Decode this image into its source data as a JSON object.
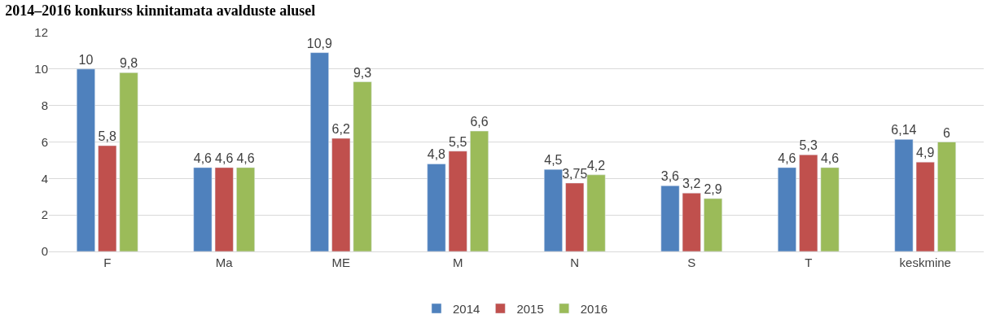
{
  "chart_data": {
    "type": "bar",
    "title": "2014–2016 konkurss kinnitamata avalduste alusel",
    "categories": [
      "F",
      "Ma",
      "ME",
      "M",
      "N",
      "S",
      "T",
      "keskmine"
    ],
    "series": [
      {
        "name": "2014",
        "color": "#4f81bd",
        "values": [
          10,
          4.6,
          10.9,
          4.8,
          4.5,
          3.6,
          4.6,
          6.14
        ],
        "value_labels": [
          "10",
          "4,6",
          "10,9",
          "4,8",
          "4,5",
          "3,6",
          "4,6",
          "6,14"
        ]
      },
      {
        "name": "2015",
        "color": "#c0504d",
        "values": [
          5.8,
          4.6,
          6.2,
          5.5,
          3.75,
          3.2,
          5.3,
          4.9
        ],
        "value_labels": [
          "5,8",
          "4,6",
          "6,2",
          "5,5",
          "3,75",
          "3,2",
          "5,3",
          "4,9"
        ]
      },
      {
        "name": "2016",
        "color": "#9bbb59",
        "values": [
          9.8,
          4.6,
          9.3,
          6.6,
          4.2,
          2.9,
          4.6,
          6
        ],
        "value_labels": [
          "9,8",
          "4,6",
          "9,3",
          "6,6",
          "4,2",
          "2,9",
          "4,6",
          "6"
        ]
      }
    ],
    "ylim": [
      0,
      12
    ],
    "yticks": [
      0,
      2,
      4,
      6,
      8,
      10,
      12
    ],
    "grid": "y",
    "legend": "bottom"
  }
}
